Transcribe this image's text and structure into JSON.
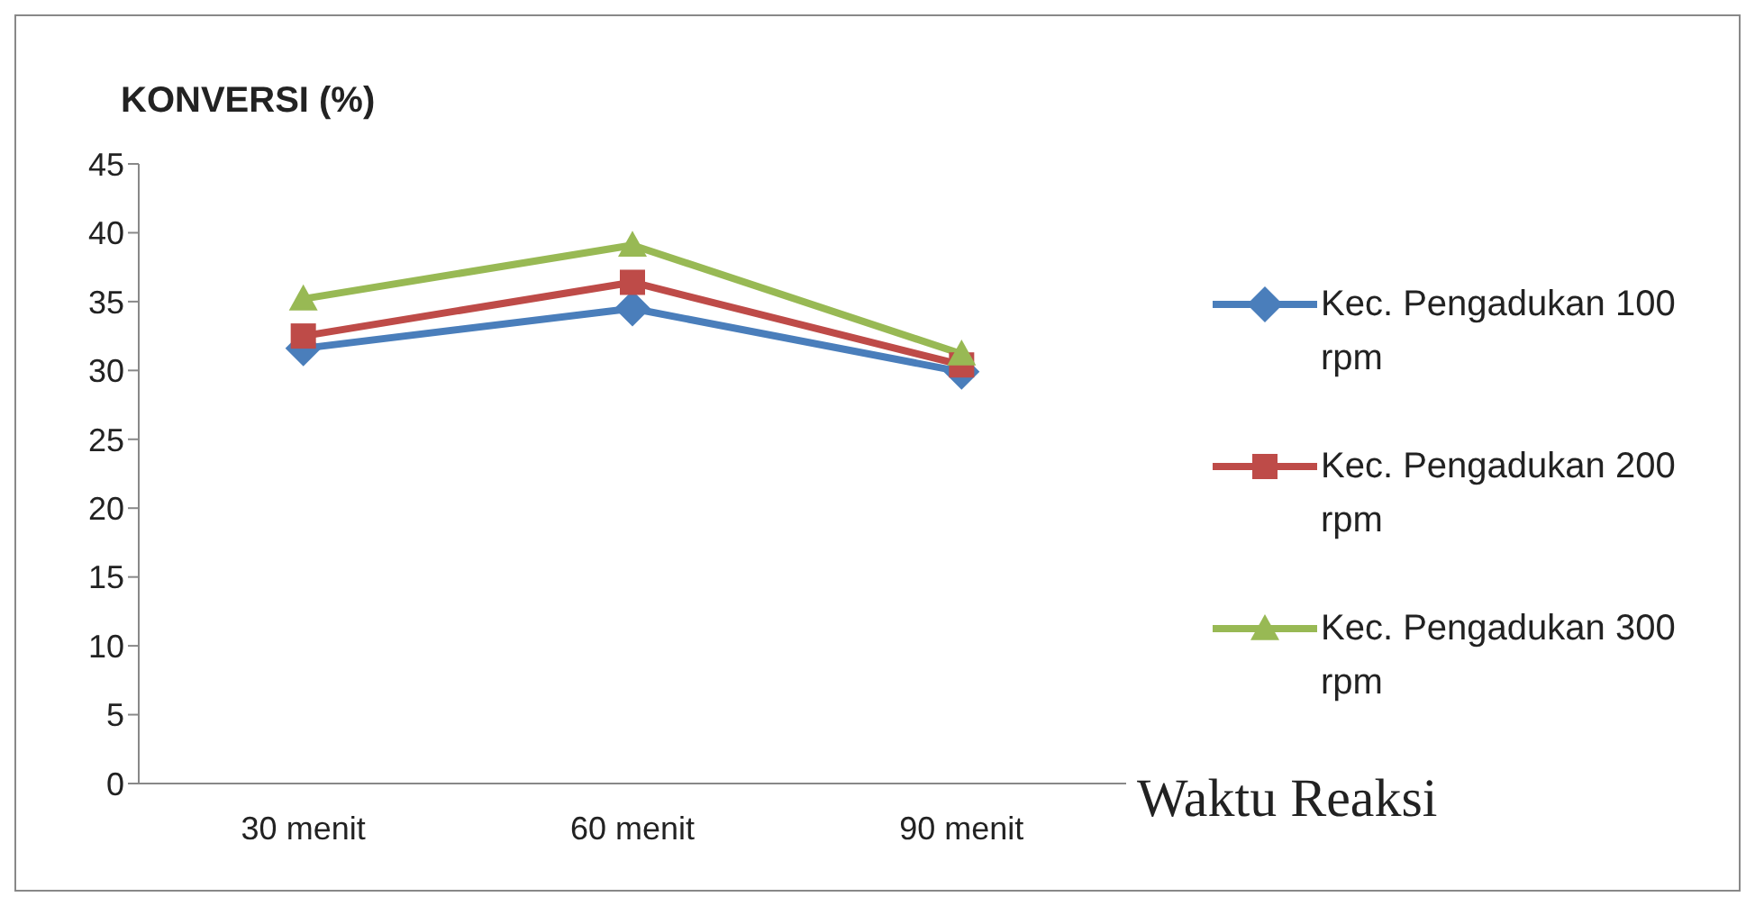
{
  "chart_data": {
    "type": "line",
    "ylabel": "KONVERSI (%)",
    "xlabel": "Waktu Reaksi",
    "categories": [
      "30 menit",
      "60 menit",
      "90 menit"
    ],
    "ylim": [
      0,
      45
    ],
    "yticks": [
      0,
      5,
      10,
      15,
      20,
      25,
      30,
      35,
      40,
      45
    ],
    "grid": false,
    "legend": "right",
    "line_style": "solid",
    "series": [
      {
        "name": "Kec. Pengadukan 100 rpm",
        "color": "#4a7ebb",
        "marker": "diamond",
        "values": [
          31.6,
          34.5,
          29.9
        ]
      },
      {
        "name": "Kec. Pengadukan 200 rpm",
        "color": "#be4b48",
        "marker": "square",
        "values": [
          32.5,
          36.4,
          30.4
        ]
      },
      {
        "name": "Kec. Pengadukan 300 rpm",
        "color": "#98b954",
        "marker": "triangle",
        "values": [
          35.2,
          39.1,
          31.2
        ]
      }
    ]
  }
}
